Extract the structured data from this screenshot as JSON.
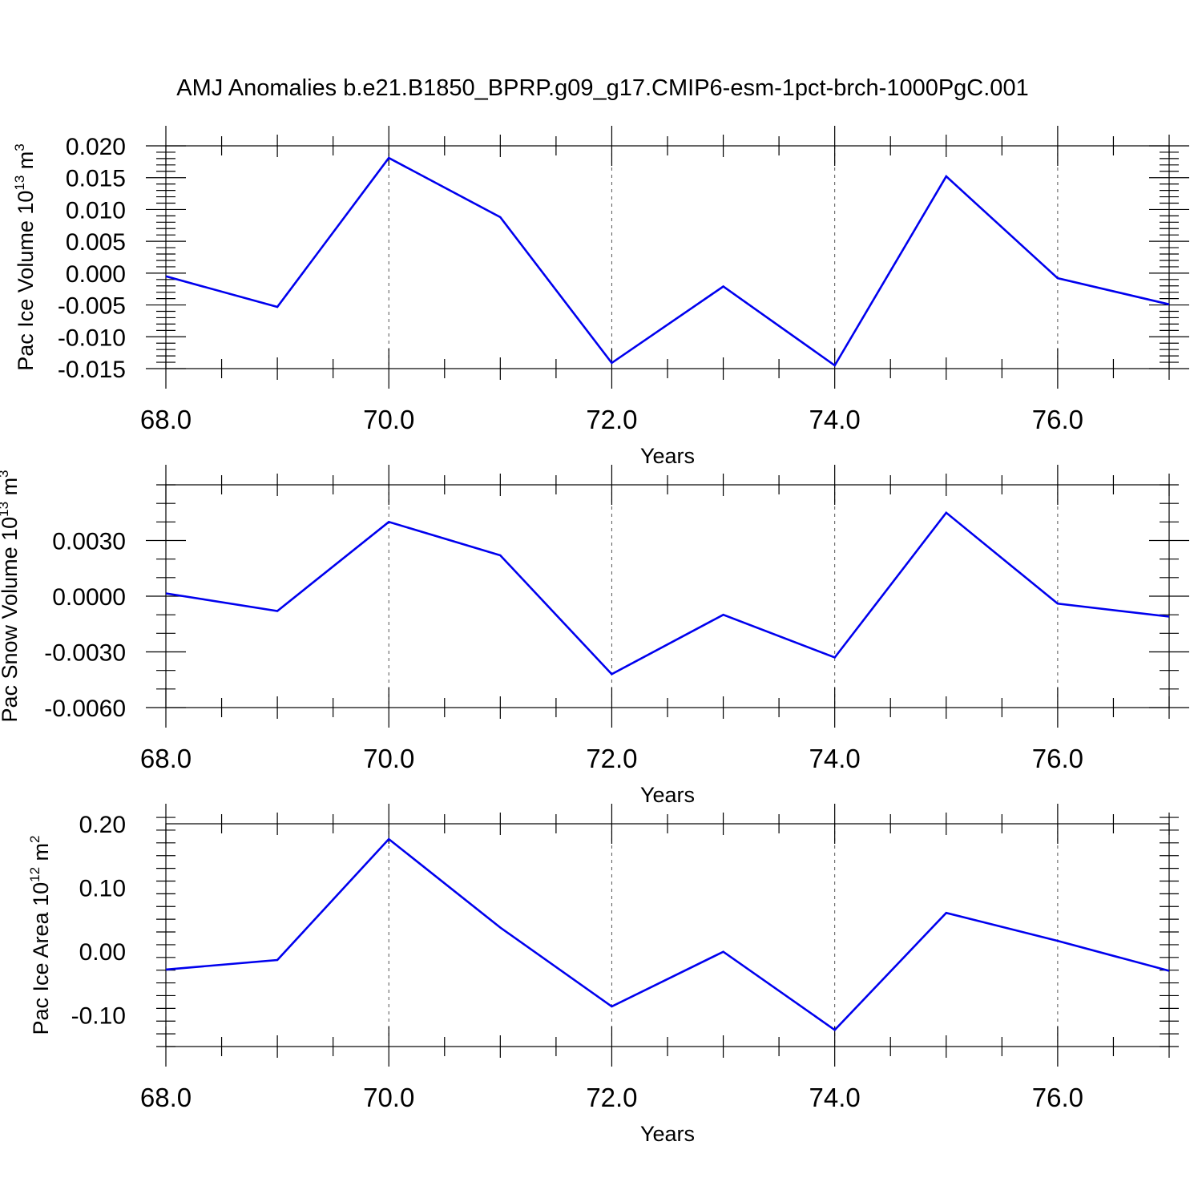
{
  "title": "AMJ Anomalies b.e21.B1850_BPRP.g09_g17.CMIP6-esm-1pct-brch-1000PgC.001",
  "line_color": "#0000ee",
  "chart_data": [
    {
      "type": "line",
      "ylabel_main": "Pac Ice Volume 10",
      "ylabel_exp": "13",
      "ylabel_unit": " m",
      "ylabel_unit_exp": "3",
      "xlabel": "Years",
      "x": [
        68,
        69,
        70,
        71,
        72,
        73,
        74,
        75,
        76,
        77
      ],
      "values": [
        -0.0005,
        -0.0053,
        0.0181,
        0.0088,
        -0.0141,
        -0.0021,
        -0.0145,
        0.0152,
        -0.0008,
        -0.0049
      ],
      "xlim": [
        68,
        77
      ],
      "ylim": [
        -0.015,
        0.02
      ],
      "xticks": [
        68,
        70,
        72,
        74,
        76
      ],
      "xtick_labels": [
        "68.0",
        "70.0",
        "72.0",
        "74.0",
        "76.0"
      ],
      "yticks": [
        -0.015,
        -0.01,
        -0.005,
        0,
        0.005,
        0.01,
        0.015,
        0.02
      ],
      "ytick_labels": [
        "-0.015",
        "-0.010",
        "-0.005",
        "0.000",
        "0.005",
        "0.010",
        "0.015",
        "0.020"
      ],
      "yminor_step": 0.001,
      "grid": "vertical dashed at major x ticks"
    },
    {
      "type": "line",
      "ylabel_main": "Pac Snow Volume 10",
      "ylabel_exp": "13",
      "ylabel_unit": " m",
      "ylabel_unit_exp": "3",
      "xlabel": "Years",
      "x": [
        68,
        69,
        70,
        71,
        72,
        73,
        74,
        75,
        76,
        77
      ],
      "values": [
        0.00015,
        -0.0008,
        0.004,
        0.0022,
        -0.0042,
        -0.001,
        -0.0033,
        0.0045,
        -0.0004,
        -0.0011
      ],
      "xlim": [
        68,
        77
      ],
      "ylim": [
        -0.006,
        0.006
      ],
      "xticks": [
        68,
        70,
        72,
        74,
        76
      ],
      "xtick_labels": [
        "68.0",
        "70.0",
        "72.0",
        "74.0",
        "76.0"
      ],
      "yticks": [
        -0.006,
        -0.003,
        0,
        0.003
      ],
      "ytick_labels": [
        "-0.0060",
        "-0.0030",
        "0.0000",
        "0.0030"
      ],
      "yminor_step": 0.001,
      "grid": "vertical dashed at major x ticks"
    },
    {
      "type": "line",
      "ylabel_main": "Pac Ice Area 10",
      "ylabel_exp": "12",
      "ylabel_unit": " m",
      "ylabel_unit_exp": "2",
      "xlabel": "Years",
      "x": [
        68,
        69,
        70,
        71,
        72,
        73,
        74,
        75,
        76,
        77
      ],
      "values": [
        -0.029,
        -0.014,
        0.176,
        0.037,
        -0.087,
        -0.001,
        -0.124,
        0.06,
        0.016,
        -0.031
      ],
      "xlim": [
        68,
        77
      ],
      "ylim": [
        -0.15,
        0.2
      ],
      "xticks": [
        68,
        70,
        72,
        74,
        76
      ],
      "xtick_labels": [
        "68.0",
        "70.0",
        "72.0",
        "74.0",
        "76.0"
      ],
      "yticks": [
        -0.1,
        0,
        0.1,
        0.2
      ],
      "ytick_labels": [
        "-0.10",
        "0.00",
        "0.10",
        "0.20"
      ],
      "yminor_step": 0.02,
      "grid": "vertical dashed at major x ticks"
    }
  ]
}
